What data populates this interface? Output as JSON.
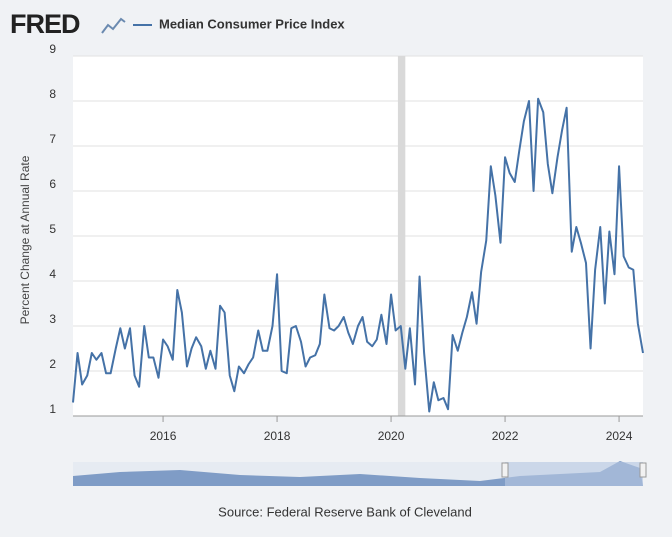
{
  "logo": "FRED",
  "chart_data": {
    "type": "line",
    "series": [
      {
        "name": "Median Consumer Price Index",
        "color": "#4572a7",
        "values": [
          1.3,
          2.4,
          1.7,
          1.9,
          2.4,
          2.25,
          2.4,
          1.95,
          1.95,
          2.5,
          2.95,
          2.5,
          2.95,
          1.9,
          1.65,
          3.0,
          2.3,
          2.3,
          1.85,
          2.7,
          2.55,
          2.25,
          3.8,
          3.3,
          2.1,
          2.5,
          2.75,
          2.55,
          2.05,
          2.45,
          2.05,
          3.45,
          3.3,
          1.9,
          1.55,
          2.1,
          1.95,
          2.15,
          2.3,
          2.9,
          2.45,
          2.45,
          3.0,
          4.15,
          2.0,
          1.95,
          2.95,
          3.0,
          2.65,
          2.1,
          2.3,
          2.35,
          2.6,
          3.7,
          2.95,
          2.9,
          3.0,
          3.2,
          2.85,
          2.6,
          3.0,
          3.2,
          2.65,
          2.55,
          2.7,
          3.25,
          2.6,
          3.7,
          2.9,
          3.0,
          2.05,
          2.95,
          1.7,
          4.1,
          2.4,
          1.1,
          1.75,
          1.35,
          1.4,
          1.15,
          2.8,
          2.45,
          2.85,
          3.2,
          3.75,
          3.05,
          4.2,
          4.9,
          6.55,
          5.9,
          4.85,
          6.75,
          6.4,
          6.2,
          6.9,
          7.55,
          8.0,
          6.0,
          8.05,
          7.75,
          6.6,
          5.95,
          6.75,
          7.35,
          7.85,
          4.65,
          5.2,
          4.85,
          4.4,
          2.5,
          4.25,
          5.2,
          3.5,
          5.1,
          4.15,
          6.55,
          4.55,
          4.3,
          4.25,
          3.05,
          2.4
        ]
      }
    ],
    "x": [
      2014.42,
      2014.5,
      2014.58,
      2014.67,
      2014.75,
      2014.83,
      2014.92,
      2015.0,
      2015.08,
      2015.17,
      2015.25,
      2015.33,
      2015.42,
      2015.5,
      2015.58,
      2015.67,
      2015.75,
      2015.83,
      2015.92,
      2016.0,
      2016.08,
      2016.17,
      2016.25,
      2016.33,
      2016.42,
      2016.5,
      2016.58,
      2016.67,
      2016.75,
      2016.83,
      2016.92,
      2017.0,
      2017.08,
      2017.17,
      2017.25,
      2017.33,
      2017.42,
      2017.5,
      2017.58,
      2017.67,
      2017.75,
      2017.83,
      2017.92,
      2018.0,
      2018.08,
      2018.17,
      2018.25,
      2018.33,
      2018.42,
      2018.5,
      2018.58,
      2018.67,
      2018.75,
      2018.83,
      2018.92,
      2019.0,
      2019.08,
      2019.17,
      2019.25,
      2019.33,
      2019.42,
      2019.5,
      2019.58,
      2019.67,
      2019.75,
      2019.83,
      2019.92,
      2020.0,
      2020.08,
      2020.17,
      2020.25,
      2020.33,
      2020.42,
      2020.5,
      2020.58,
      2020.67,
      2020.75,
      2020.83,
      2020.92,
      2021.0,
      2021.08,
      2021.17,
      2021.25,
      2021.33,
      2021.42,
      2021.5,
      2021.58,
      2021.67,
      2021.75,
      2021.83,
      2021.92,
      2022.0,
      2022.08,
      2022.17,
      2022.25,
      2022.33,
      2022.42,
      2022.5,
      2022.58,
      2022.67,
      2022.75,
      2022.83,
      2022.92,
      2023.0,
      2023.08,
      2023.17,
      2023.25,
      2023.33,
      2023.42,
      2023.5,
      2023.58,
      2023.67,
      2023.75,
      2023.83,
      2023.92,
      2024.0,
      2024.08,
      2024.17,
      2024.25,
      2024.33,
      2024.42
    ],
    "recession_x": [
      2020.12,
      2020.25
    ],
    "xlim": [
      2014.42,
      2024.42
    ],
    "xticks": [
      2016,
      2018,
      2020,
      2022,
      2024
    ],
    "ylim": [
      1,
      9
    ],
    "yticks": [
      1,
      2,
      3,
      4,
      5,
      6,
      7,
      8,
      9
    ],
    "ylabel": "Percent Change at Annual Rate",
    "grid": true,
    "source": "Source: Federal Reserve Bank of Cleveland"
  }
}
